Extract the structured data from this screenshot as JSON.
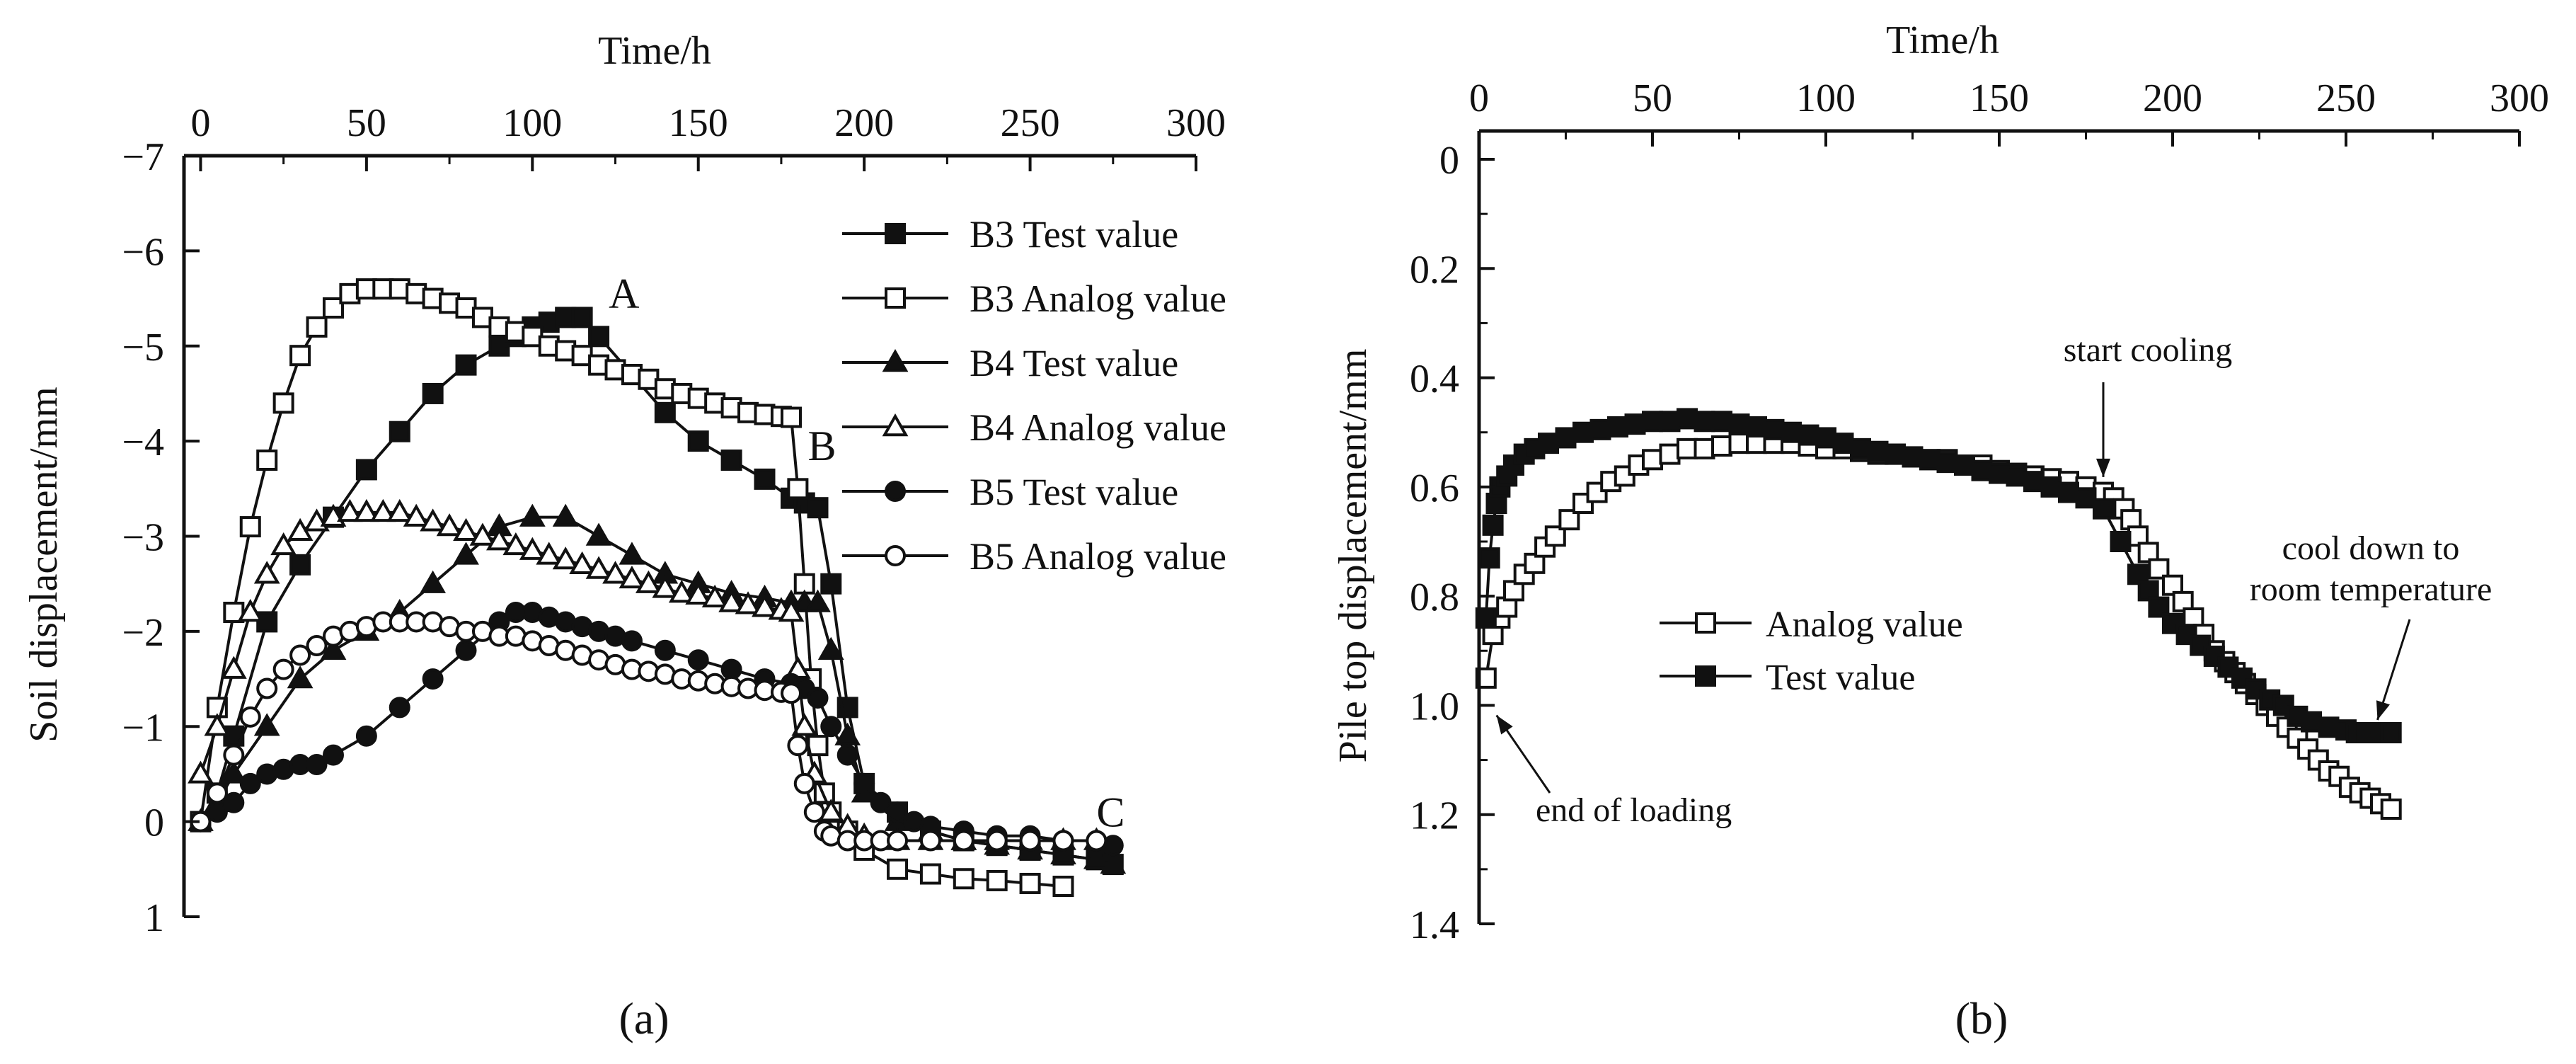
{
  "chart_data": [
    {
      "panel_label": "(a)",
      "type": "line",
      "xlabel": "Time/h",
      "ylabel": "Soil displacement/mm",
      "xlim": [
        -5,
        300
      ],
      "ylim": [
        -7,
        1
      ],
      "xticks": [
        0,
        50,
        100,
        150,
        200,
        250,
        300
      ],
      "yticks": [
        -7,
        -6,
        -5,
        -4,
        -3,
        -2,
        -1,
        0,
        1
      ],
      "ytick_labels": [
        "−7",
        "−6",
        "−5",
        "−4",
        "−3",
        "−2",
        "−1",
        "0",
        "1"
      ],
      "annotations": [
        {
          "text": "A",
          "x": 123,
          "y": -5.4
        },
        {
          "text": "B",
          "x": 183,
          "y": -3.8
        },
        {
          "text": "C",
          "x": 270,
          "y": 0.05
        }
      ],
      "series": [
        {
          "name": "B3 Test value",
          "marker": "square",
          "filled": true,
          "x": [
            0,
            5,
            10,
            20,
            30,
            40,
            50,
            60,
            70,
            80,
            90,
            95,
            100,
            105,
            110,
            115,
            120,
            130,
            140,
            150,
            160,
            170,
            178,
            182,
            186,
            190,
            195,
            200,
            210,
            220,
            230,
            240,
            250,
            260,
            270,
            275
          ],
          "y": [
            0,
            -0.3,
            -0.9,
            -2.1,
            -2.7,
            -3.2,
            -3.7,
            -4.1,
            -4.5,
            -4.8,
            -5.0,
            -5.1,
            -5.2,
            -5.25,
            -5.3,
            -5.3,
            -5.1,
            -4.7,
            -4.3,
            -4.0,
            -3.8,
            -3.6,
            -3.4,
            -3.35,
            -3.3,
            -2.5,
            -1.2,
            -0.4,
            -0.1,
            0.1,
            0.2,
            0.25,
            0.3,
            0.35,
            0.4,
            0.45
          ]
        },
        {
          "name": "B3 Analog value",
          "marker": "square",
          "filled": false,
          "x": [
            0,
            5,
            10,
            15,
            20,
            25,
            30,
            35,
            40,
            45,
            50,
            55,
            60,
            65,
            70,
            75,
            80,
            85,
            90,
            95,
            100,
            105,
            110,
            115,
            120,
            125,
            130,
            135,
            140,
            145,
            150,
            155,
            160,
            165,
            170,
            175,
            178,
            180,
            182,
            184,
            186,
            188,
            190,
            195,
            200,
            210,
            220,
            230,
            240,
            250,
            260
          ],
          "y": [
            0,
            -1.2,
            -2.2,
            -3.1,
            -3.8,
            -4.4,
            -4.9,
            -5.2,
            -5.4,
            -5.55,
            -5.6,
            -5.6,
            -5.6,
            -5.55,
            -5.5,
            -5.45,
            -5.4,
            -5.3,
            -5.2,
            -5.15,
            -5.1,
            -5.0,
            -4.95,
            -4.9,
            -4.8,
            -4.75,
            -4.7,
            -4.65,
            -4.55,
            -4.5,
            -4.45,
            -4.4,
            -4.35,
            -4.3,
            -4.28,
            -4.26,
            -4.25,
            -3.5,
            -2.5,
            -1.5,
            -0.8,
            -0.3,
            -0.1,
            0.1,
            0.3,
            0.5,
            0.55,
            0.6,
            0.62,
            0.65,
            0.68
          ]
        },
        {
          "name": "B4 Test value",
          "marker": "triangle",
          "filled": true,
          "x": [
            0,
            5,
            10,
            20,
            30,
            40,
            50,
            60,
            70,
            80,
            90,
            100,
            110,
            120,
            130,
            140,
            150,
            160,
            170,
            178,
            182,
            186,
            190,
            195,
            200,
            210,
            220,
            230,
            240,
            250,
            260,
            270,
            275
          ],
          "y": [
            0,
            -0.2,
            -0.5,
            -1.0,
            -1.5,
            -1.8,
            -2.0,
            -2.2,
            -2.5,
            -2.8,
            -3.1,
            -3.2,
            -3.2,
            -3.0,
            -2.8,
            -2.6,
            -2.5,
            -2.4,
            -2.35,
            -2.3,
            -2.3,
            -2.3,
            -1.8,
            -0.9,
            -0.3,
            0,
            0.1,
            0.2,
            0.25,
            0.3,
            0.35,
            0.4,
            0.45
          ]
        },
        {
          "name": "B4 Analog value",
          "marker": "triangle",
          "filled": false,
          "x": [
            0,
            5,
            10,
            15,
            20,
            25,
            30,
            35,
            40,
            45,
            50,
            55,
            60,
            65,
            70,
            75,
            80,
            85,
            90,
            95,
            100,
            105,
            110,
            115,
            120,
            125,
            130,
            135,
            140,
            145,
            150,
            155,
            160,
            165,
            170,
            175,
            178,
            180,
            182,
            185,
            190,
            195,
            200,
            210,
            220,
            230,
            240,
            250,
            260,
            270
          ],
          "y": [
            -0.5,
            -1.0,
            -1.6,
            -2.2,
            -2.6,
            -2.9,
            -3.05,
            -3.15,
            -3.2,
            -3.25,
            -3.25,
            -3.25,
            -3.25,
            -3.2,
            -3.15,
            -3.1,
            -3.05,
            -3.0,
            -2.95,
            -2.9,
            -2.85,
            -2.8,
            -2.75,
            -2.7,
            -2.65,
            -2.6,
            -2.55,
            -2.5,
            -2.45,
            -2.4,
            -2.38,
            -2.35,
            -2.3,
            -2.28,
            -2.25,
            -2.22,
            -2.2,
            -1.6,
            -1.0,
            -0.5,
            -0.1,
            0.05,
            0.15,
            0.2,
            0.2,
            0.2,
            0.2,
            0.2,
            0.2,
            0.2
          ]
        },
        {
          "name": "B5 Test value",
          "marker": "circle",
          "filled": true,
          "x": [
            0,
            5,
            10,
            15,
            20,
            25,
            30,
            35,
            40,
            50,
            60,
            70,
            80,
            90,
            95,
            100,
            105,
            110,
            115,
            120,
            125,
            130,
            140,
            150,
            160,
            170,
            178,
            182,
            186,
            190,
            195,
            200,
            205,
            210,
            215,
            220,
            230,
            240,
            250,
            260,
            270,
            275
          ],
          "y": [
            0,
            -0.1,
            -0.2,
            -0.4,
            -0.5,
            -0.55,
            -0.6,
            -0.6,
            -0.7,
            -0.9,
            -1.2,
            -1.5,
            -1.8,
            -2.1,
            -2.2,
            -2.2,
            -2.15,
            -2.1,
            -2.05,
            -2.0,
            -1.95,
            -1.9,
            -1.8,
            -1.7,
            -1.6,
            -1.5,
            -1.45,
            -1.4,
            -1.3,
            -1.0,
            -0.7,
            -0.4,
            -0.2,
            -0.1,
            0,
            0.05,
            0.1,
            0.15,
            0.15,
            0.2,
            0.2,
            0.25
          ]
        },
        {
          "name": "B5 Analog value",
          "marker": "circle",
          "filled": false,
          "x": [
            0,
            5,
            10,
            15,
            20,
            25,
            30,
            35,
            40,
            45,
            50,
            55,
            60,
            65,
            70,
            75,
            80,
            85,
            90,
            95,
            100,
            105,
            110,
            115,
            120,
            125,
            130,
            135,
            140,
            145,
            150,
            155,
            160,
            165,
            170,
            175,
            178,
            180,
            182,
            185,
            188,
            190,
            195,
            200,
            205,
            210,
            220,
            230,
            240,
            250,
            260,
            270
          ],
          "y": [
            0,
            -0.3,
            -0.7,
            -1.1,
            -1.4,
            -1.6,
            -1.75,
            -1.85,
            -1.95,
            -2.0,
            -2.05,
            -2.1,
            -2.1,
            -2.1,
            -2.1,
            -2.05,
            -2.0,
            -2.0,
            -1.95,
            -1.95,
            -1.9,
            -1.85,
            -1.8,
            -1.75,
            -1.7,
            -1.65,
            -1.6,
            -1.58,
            -1.55,
            -1.5,
            -1.48,
            -1.45,
            -1.42,
            -1.4,
            -1.38,
            -1.36,
            -1.35,
            -0.8,
            -0.4,
            -0.1,
            0.1,
            0.15,
            0.2,
            0.2,
            0.2,
            0.2,
            0.2,
            0.2,
            0.2,
            0.2,
            0.2,
            0.2
          ]
        }
      ]
    },
    {
      "panel_label": "(b)",
      "type": "line",
      "xlabel": "Time/h",
      "ylabel": "Pile top displacement/mm",
      "xlim": [
        0,
        300
      ],
      "ylim": [
        0,
        1.4
      ],
      "xticks": [
        0,
        50,
        100,
        150,
        200,
        250,
        300
      ],
      "yticks": [
        0,
        0.2,
        0.4,
        0.6,
        0.8,
        1.0,
        1.2,
        1.4
      ],
      "ytick_labels": [
        "0",
        "0.2",
        "0.4",
        "0.6",
        "0.8",
        "1.0",
        "1.2",
        "1.4"
      ],
      "annotations": [
        {
          "text": "start cooling",
          "arrow_to_x": 180,
          "arrow_to_y": 0.6
        },
        {
          "text": "cool down to",
          "text2": "room temperature",
          "arrow_to_x": 255,
          "arrow_to_y": 1.05
        },
        {
          "text": "end of loading",
          "arrow_to_x": 3,
          "arrow_to_y": 1.0
        }
      ],
      "series": [
        {
          "name": "Analog value",
          "marker": "square",
          "filled": false,
          "x": [
            2,
            4,
            6,
            8,
            10,
            13,
            16,
            19,
            22,
            26,
            30,
            34,
            38,
            42,
            46,
            50,
            55,
            60,
            65,
            70,
            75,
            80,
            85,
            90,
            95,
            100,
            105,
            110,
            115,
            120,
            125,
            130,
            135,
            140,
            145,
            150,
            155,
            160,
            165,
            170,
            175,
            180,
            183,
            186,
            188,
            190,
            193,
            196,
            200,
            203,
            206,
            209,
            212,
            215,
            218,
            221,
            224,
            227,
            230,
            233,
            236,
            239,
            242,
            245,
            248,
            251,
            254,
            257,
            260,
            263
          ],
          "y": [
            0.95,
            0.87,
            0.84,
            0.82,
            0.79,
            0.76,
            0.74,
            0.71,
            0.69,
            0.66,
            0.63,
            0.61,
            0.59,
            0.58,
            0.56,
            0.55,
            0.54,
            0.53,
            0.53,
            0.525,
            0.52,
            0.52,
            0.52,
            0.52,
            0.525,
            0.53,
            0.53,
            0.535,
            0.54,
            0.54,
            0.545,
            0.55,
            0.55,
            0.56,
            0.56,
            0.57,
            0.575,
            0.58,
            0.585,
            0.59,
            0.6,
            0.61,
            0.62,
            0.64,
            0.66,
            0.69,
            0.72,
            0.75,
            0.78,
            0.81,
            0.84,
            0.87,
            0.9,
            0.92,
            0.94,
            0.96,
            0.98,
            1.0,
            1.02,
            1.04,
            1.06,
            1.08,
            1.1,
            1.12,
            1.13,
            1.15,
            1.16,
            1.17,
            1.18,
            1.19
          ]
        },
        {
          "name": "Test value",
          "marker": "square",
          "filled": true,
          "x": [
            2,
            3,
            4,
            5,
            6,
            8,
            10,
            13,
            16,
            20,
            25,
            30,
            35,
            40,
            45,
            50,
            55,
            60,
            65,
            70,
            75,
            80,
            85,
            90,
            95,
            100,
            105,
            110,
            115,
            120,
            125,
            130,
            135,
            140,
            145,
            150,
            155,
            160,
            165,
            170,
            175,
            180,
            185,
            190,
            193,
            196,
            200,
            204,
            208,
            212,
            216,
            220,
            224,
            228,
            232,
            236,
            240,
            245,
            250,
            253,
            256,
            260,
            263
          ],
          "y": [
            0.84,
            0.73,
            0.67,
            0.63,
            0.6,
            0.58,
            0.56,
            0.54,
            0.53,
            0.52,
            0.51,
            0.5,
            0.495,
            0.49,
            0.485,
            0.48,
            0.48,
            0.475,
            0.48,
            0.48,
            0.485,
            0.49,
            0.495,
            0.5,
            0.505,
            0.51,
            0.52,
            0.53,
            0.535,
            0.54,
            0.545,
            0.55,
            0.555,
            0.56,
            0.57,
            0.575,
            0.58,
            0.59,
            0.6,
            0.61,
            0.62,
            0.64,
            0.7,
            0.76,
            0.79,
            0.82,
            0.85,
            0.87,
            0.89,
            0.91,
            0.93,
            0.95,
            0.97,
            0.99,
            1.0,
            1.02,
            1.03,
            1.04,
            1.045,
            1.05,
            1.05,
            1.05,
            1.05
          ]
        }
      ]
    }
  ]
}
